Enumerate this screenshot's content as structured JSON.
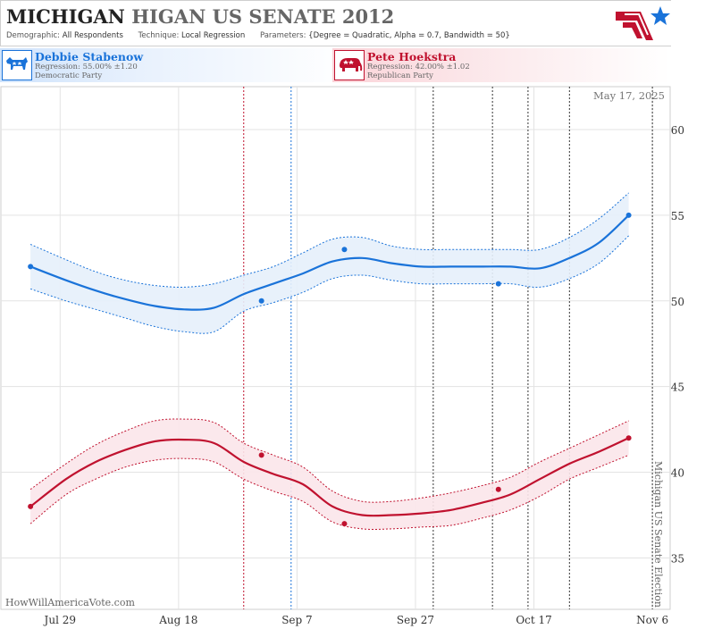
{
  "header": {
    "title_state": "MICHIGAN",
    "title_rest": "HIGAN US SENATE 2012",
    "demographic_label": "Demographic:",
    "demographic_value": "All Respondents",
    "technique_label": "Technique:",
    "technique_value": "Local Regression",
    "parameters_label": "Parameters:",
    "parameters_value": "{Degree = Quadratic, Alpha = 0.7, Bandwidth = 50}"
  },
  "candidates": [
    {
      "name": "Debbie Stabenow",
      "regression": "Regression: 55.00% ±1.20",
      "party": "Democratic Party",
      "icon": "donkey-icon",
      "color": "#1a73d9"
    },
    {
      "name": "Pete Hoekstra",
      "regression": "Regression: 42.00% ±1.02",
      "party": "Republican Party",
      "icon": "elephant-icon",
      "color": "#c0122f"
    }
  ],
  "chart_data": {
    "type": "line",
    "date_label": "May 17, 2025",
    "watermark": "HowWillAmericaVote.com",
    "election_label": "Michigan US Senate Election",
    "x_ticks": [
      "Jul 29",
      "Aug 18",
      "Sep 7",
      "Sep 27",
      "Oct 17",
      "Nov 6"
    ],
    "x_tick_dates": [
      "2012-07-29",
      "2012-08-18",
      "2012-09-07",
      "2012-09-27",
      "2012-10-17",
      "2012-11-06"
    ],
    "x_range": [
      "2012-07-19",
      "2012-11-09"
    ],
    "y_ticks": [
      35,
      40,
      45,
      50,
      55,
      60
    ],
    "ylim": [
      32.0,
      62.5
    ],
    "grid": true,
    "event_lines": [
      {
        "date": "2012-08-29",
        "color": "#c0122f"
      },
      {
        "date": "2012-09-06",
        "color": "#1a73d9"
      },
      {
        "date": "2012-09-30",
        "color": "#333333"
      },
      {
        "date": "2012-10-10",
        "color": "#333333"
      },
      {
        "date": "2012-10-16",
        "color": "#333333"
      },
      {
        "date": "2012-10-23",
        "color": "#333333"
      },
      {
        "date": "2012-11-06",
        "color": "#333333"
      }
    ],
    "series": [
      {
        "name": "Debbie Stabenow",
        "color": "#1a73d9",
        "band_color": "#e6f0fb",
        "trend": [
          [
            "2012-07-24",
            52.0
          ],
          [
            "2012-07-30",
            51.2
          ],
          [
            "2012-08-04",
            50.6
          ],
          [
            "2012-08-09",
            50.1
          ],
          [
            "2012-08-14",
            49.7
          ],
          [
            "2012-08-19",
            49.5
          ],
          [
            "2012-08-24",
            49.6
          ],
          [
            "2012-08-29",
            50.4
          ],
          [
            "2012-09-03",
            51.0
          ],
          [
            "2012-09-08",
            51.6
          ],
          [
            "2012-09-13",
            52.3
          ],
          [
            "2012-09-18",
            52.5
          ],
          [
            "2012-09-23",
            52.2
          ],
          [
            "2012-09-28",
            52.0
          ],
          [
            "2012-10-03",
            52.0
          ],
          [
            "2012-10-08",
            52.0
          ],
          [
            "2012-10-13",
            52.0
          ],
          [
            "2012-10-18",
            51.9
          ],
          [
            "2012-10-23",
            52.5
          ],
          [
            "2012-10-28",
            53.4
          ],
          [
            "2012-11-02",
            55.0
          ]
        ],
        "upper": [
          [
            "2012-07-24",
            53.3
          ],
          [
            "2012-07-30",
            52.4
          ],
          [
            "2012-08-04",
            51.7
          ],
          [
            "2012-08-09",
            51.2
          ],
          [
            "2012-08-14",
            50.9
          ],
          [
            "2012-08-19",
            50.8
          ],
          [
            "2012-08-24",
            51.0
          ],
          [
            "2012-08-29",
            51.5
          ],
          [
            "2012-09-03",
            52.0
          ],
          [
            "2012-09-08",
            52.8
          ],
          [
            "2012-09-13",
            53.6
          ],
          [
            "2012-09-18",
            53.7
          ],
          [
            "2012-09-23",
            53.2
          ],
          [
            "2012-09-28",
            53.0
          ],
          [
            "2012-10-03",
            53.0
          ],
          [
            "2012-10-08",
            53.0
          ],
          [
            "2012-10-13",
            53.0
          ],
          [
            "2012-10-18",
            53.0
          ],
          [
            "2012-10-23",
            53.7
          ],
          [
            "2012-10-28",
            54.8
          ],
          [
            "2012-11-02",
            56.3
          ]
        ],
        "lower": [
          [
            "2012-07-24",
            50.7
          ],
          [
            "2012-07-30",
            50.0
          ],
          [
            "2012-08-04",
            49.5
          ],
          [
            "2012-08-09",
            49.0
          ],
          [
            "2012-08-14",
            48.5
          ],
          [
            "2012-08-19",
            48.2
          ],
          [
            "2012-08-24",
            48.2
          ],
          [
            "2012-08-29",
            49.4
          ],
          [
            "2012-09-03",
            49.9
          ],
          [
            "2012-09-08",
            50.5
          ],
          [
            "2012-09-13",
            51.3
          ],
          [
            "2012-09-18",
            51.5
          ],
          [
            "2012-09-23",
            51.2
          ],
          [
            "2012-09-28",
            51.0
          ],
          [
            "2012-10-03",
            51.0
          ],
          [
            "2012-10-08",
            51.0
          ],
          [
            "2012-10-13",
            51.0
          ],
          [
            "2012-10-18",
            50.8
          ],
          [
            "2012-10-23",
            51.3
          ],
          [
            "2012-10-28",
            52.2
          ],
          [
            "2012-11-02",
            53.8
          ]
        ],
        "points": [
          [
            "2012-07-24",
            52
          ],
          [
            "2012-09-01",
            50
          ],
          [
            "2012-09-15",
            53
          ],
          [
            "2012-10-11",
            51
          ],
          [
            "2012-11-02",
            55
          ]
        ]
      },
      {
        "name": "Pete Hoekstra",
        "color": "#c0122f",
        "band_color": "#fbe6ea",
        "trend": [
          [
            "2012-07-24",
            38.0
          ],
          [
            "2012-07-30",
            39.6
          ],
          [
            "2012-08-04",
            40.6
          ],
          [
            "2012-08-09",
            41.3
          ],
          [
            "2012-08-14",
            41.8
          ],
          [
            "2012-08-19",
            41.9
          ],
          [
            "2012-08-24",
            41.7
          ],
          [
            "2012-08-29",
            40.6
          ],
          [
            "2012-09-03",
            39.9
          ],
          [
            "2012-09-08",
            39.3
          ],
          [
            "2012-09-13",
            38.0
          ],
          [
            "2012-09-18",
            37.5
          ],
          [
            "2012-09-23",
            37.5
          ],
          [
            "2012-09-28",
            37.6
          ],
          [
            "2012-10-03",
            37.8
          ],
          [
            "2012-10-08",
            38.2
          ],
          [
            "2012-10-13",
            38.7
          ],
          [
            "2012-10-18",
            39.6
          ],
          [
            "2012-10-23",
            40.5
          ],
          [
            "2012-10-28",
            41.2
          ],
          [
            "2012-11-02",
            42.0
          ]
        ],
        "upper": [
          [
            "2012-07-24",
            39.0
          ],
          [
            "2012-07-30",
            40.5
          ],
          [
            "2012-08-04",
            41.6
          ],
          [
            "2012-08-09",
            42.4
          ],
          [
            "2012-08-14",
            43.0
          ],
          [
            "2012-08-19",
            43.1
          ],
          [
            "2012-08-24",
            42.9
          ],
          [
            "2012-08-29",
            41.7
          ],
          [
            "2012-09-03",
            41.0
          ],
          [
            "2012-09-08",
            40.3
          ],
          [
            "2012-09-13",
            38.9
          ],
          [
            "2012-09-18",
            38.3
          ],
          [
            "2012-09-23",
            38.3
          ],
          [
            "2012-09-28",
            38.5
          ],
          [
            "2012-10-03",
            38.8
          ],
          [
            "2012-10-08",
            39.2
          ],
          [
            "2012-10-13",
            39.7
          ],
          [
            "2012-10-18",
            40.6
          ],
          [
            "2012-10-23",
            41.4
          ],
          [
            "2012-10-28",
            42.2
          ],
          [
            "2012-11-02",
            43.0
          ]
        ],
        "lower": [
          [
            "2012-07-24",
            37.0
          ],
          [
            "2012-07-30",
            38.7
          ],
          [
            "2012-08-04",
            39.6
          ],
          [
            "2012-08-09",
            40.3
          ],
          [
            "2012-08-14",
            40.7
          ],
          [
            "2012-08-19",
            40.8
          ],
          [
            "2012-08-24",
            40.6
          ],
          [
            "2012-08-29",
            39.6
          ],
          [
            "2012-09-03",
            38.9
          ],
          [
            "2012-09-08",
            38.3
          ],
          [
            "2012-09-13",
            37.1
          ],
          [
            "2012-09-18",
            36.7
          ],
          [
            "2012-09-23",
            36.7
          ],
          [
            "2012-09-28",
            36.8
          ],
          [
            "2012-10-03",
            36.9
          ],
          [
            "2012-10-08",
            37.3
          ],
          [
            "2012-10-13",
            37.8
          ],
          [
            "2012-10-18",
            38.6
          ],
          [
            "2012-10-23",
            39.6
          ],
          [
            "2012-10-28",
            40.3
          ],
          [
            "2012-11-02",
            41.0
          ]
        ],
        "points": [
          [
            "2012-07-24",
            38
          ],
          [
            "2012-09-01",
            41
          ],
          [
            "2012-09-15",
            37
          ],
          [
            "2012-10-11",
            39
          ],
          [
            "2012-11-02",
            42
          ]
        ]
      }
    ]
  }
}
